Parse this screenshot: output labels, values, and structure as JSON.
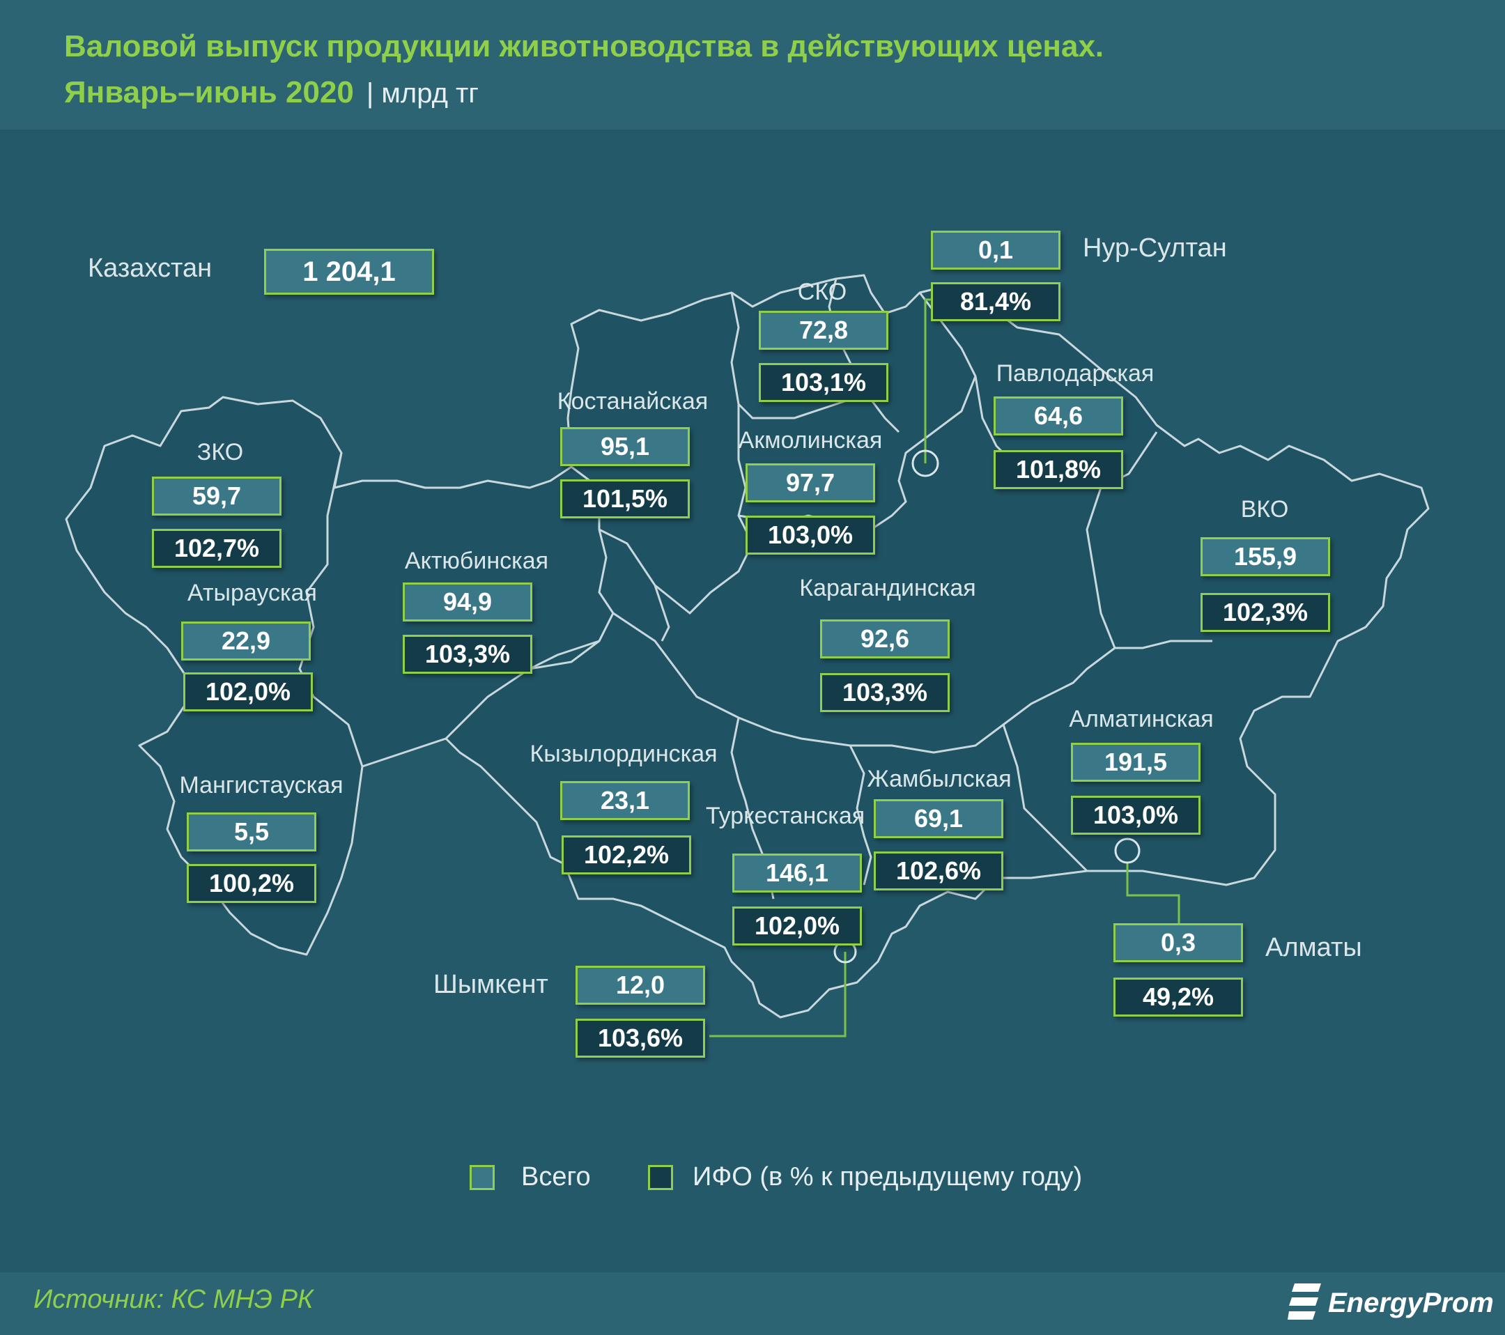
{
  "header": {
    "title_line1": "Валовой выпуск продукции животноводства в действующих ценах.",
    "title_line2": "Январь–июнь 2020",
    "unit": "| млрд тг"
  },
  "country": {
    "label": "Казахстан",
    "value": "1 204,1"
  },
  "regions": [
    {
      "id": "zko",
      "name": "ЗКО",
      "total": "59,7",
      "ifo": "102,7%"
    },
    {
      "id": "atyrau",
      "name": "Атырауская",
      "total": "22,9",
      "ifo": "102,0%"
    },
    {
      "id": "mangystau",
      "name": "Мангистауская",
      "total": "5,5",
      "ifo": "100,2%"
    },
    {
      "id": "aktobe",
      "name": "Актюбинская",
      "total": "94,9",
      "ifo": "103,3%"
    },
    {
      "id": "kostanay",
      "name": "Костанайская",
      "total": "95,1",
      "ifo": "101,5%"
    },
    {
      "id": "sko",
      "name": "СКО",
      "total": "72,8",
      "ifo": "103,1%"
    },
    {
      "id": "akmola",
      "name": "Акмолинская",
      "total": "97,7",
      "ifo": "103,0%"
    },
    {
      "id": "nursultan",
      "name": "Нур-Султан",
      "total": "0,1",
      "ifo": "81,4%"
    },
    {
      "id": "pavlodar",
      "name": "Павлодарская",
      "total": "64,6",
      "ifo": "101,8%"
    },
    {
      "id": "vko",
      "name": "ВКО",
      "total": "155,9",
      "ifo": "102,3%"
    },
    {
      "id": "karaganda",
      "name": "Карагандинская",
      "total": "92,6",
      "ifo": "103,3%"
    },
    {
      "id": "kyzylorda",
      "name": "Кызылординская",
      "total": "23,1",
      "ifo": "102,2%"
    },
    {
      "id": "turkestan",
      "name": "Туркестанская",
      "total": "146,1",
      "ifo": "102,0%"
    },
    {
      "id": "zhambyl",
      "name": "Жамбылская",
      "total": "69,1",
      "ifo": "102,6%"
    },
    {
      "id": "almaty_reg",
      "name": "Алматинская",
      "total": "191,5",
      "ifo": "103,0%"
    },
    {
      "id": "almaty",
      "name": "Алматы",
      "total": "0,3",
      "ifo": "49,2%"
    },
    {
      "id": "shymkent",
      "name": "Шымкент",
      "total": "12,0",
      "ifo": "103,6%"
    }
  ],
  "legend": {
    "total_label": "Всего",
    "ifo_label": "ИФО (в % к предыдущему году)"
  },
  "footer": {
    "source": "Источник: КС МНЭ РК",
    "logo_text": "EnergyProm"
  },
  "colors": {
    "background": "#24596a",
    "accent_green": "#8fcf4a",
    "total_box": "#3a7888",
    "ifo_box": "#143c48"
  }
}
